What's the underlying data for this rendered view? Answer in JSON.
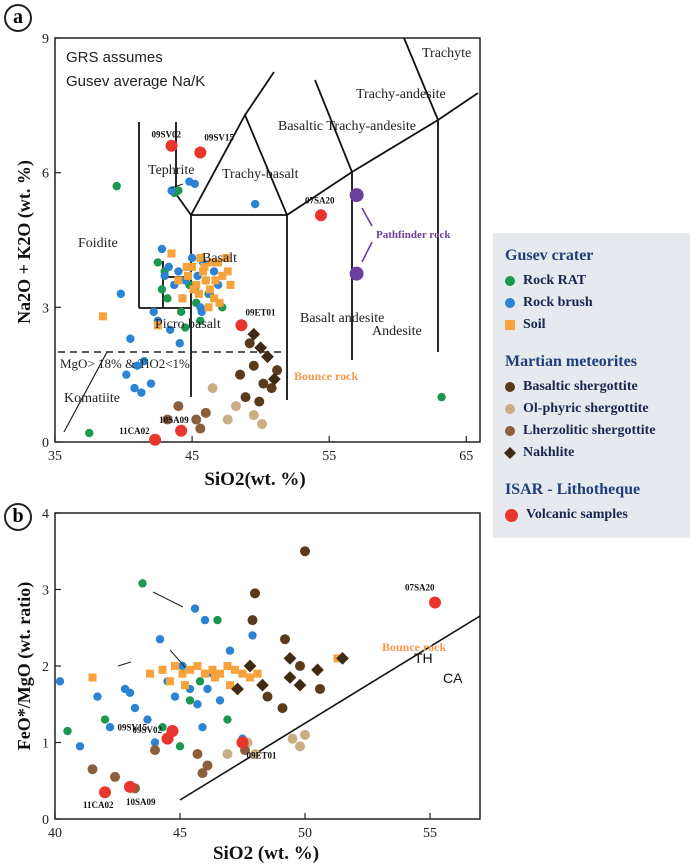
{
  "colors": {
    "rock_rat": "#1a9850",
    "rock_brush": "#2b83d4",
    "soil": "#f5a33a",
    "basaltic_shergottite": "#5a3a1a",
    "olphyric_shergottite": "#c9ae85",
    "lherzolitic_shergottite": "#8b5e3c",
    "nakhlite": "#3f2a14",
    "volcanic": "#e8362d",
    "pathfinder": "#6b3fa0",
    "bounce": "#f59a4c"
  },
  "legend": {
    "gusev_title": "Gusev crater",
    "rock_rat": "Rock RAT",
    "rock_brush": "Rock brush",
    "soil": "Soil",
    "martian_title": "Martian meteorites",
    "basaltic_shergottite": "Basaltic shergottite",
    "olphyric_shergottite": "Ol-phyric shergottite",
    "lherzolitic_shergottite": "Lherzolitic shergottite",
    "nakhlite": "Nakhlite",
    "isar_title": "ISAR - Lithotheque",
    "volcanic": "Volcanic samples"
  },
  "chart_data": [
    {
      "type": "scatter",
      "panel_label": "a",
      "note": [
        "GRS assumes",
        "Gusev average Na/K"
      ],
      "xlabel": "SiO2(wt. %)",
      "ylabel": "Na2O + K2O (wt. %)",
      "xlim": [
        35,
        66
      ],
      "ylim": [
        0,
        9
      ],
      "x_ticks": [
        35,
        45,
        55,
        65
      ],
      "y_ticks": [
        0,
        3,
        6,
        9
      ],
      "fields": [
        "Foidite",
        "Tephrite",
        "Trachy-basalt",
        "Basaltic Trachy-andesite",
        "Trachy-andesite",
        "Trachyte",
        "Basalt",
        "Basalt andesite",
        "Andesite",
        "Picro basalt",
        "MgO> 18% & TiO2<1%",
        "Komatiite"
      ],
      "annotations": {
        "pathfinder": "Pathfinder rock",
        "bounce": "Bounce rock"
      },
      "series": [
        {
          "name": "Rock RAT",
          "x": [
            37.5,
            39.5,
            42.5,
            42.8,
            43.0,
            43.2,
            43.7,
            44.0,
            44.2,
            44.5,
            44.8,
            45.3,
            45.6,
            46.2,
            47.2,
            63.2
          ],
          "y": [
            0.2,
            5.7,
            4.0,
            3.4,
            3.8,
            3.2,
            5.55,
            5.6,
            2.9,
            2.55,
            3.5,
            3.1,
            2.7,
            3.3,
            3.0,
            1.0
          ]
        },
        {
          "name": "Rock brush",
          "x": [
            39.8,
            40.5,
            41.5,
            42.0,
            42.5,
            43.0,
            43.3,
            43.7,
            44.0,
            44.3,
            44.5,
            44.8,
            45.0,
            45.2,
            45.4,
            45.6,
            45.8,
            46.0,
            46.3,
            46.6,
            43.5,
            44.8,
            45.2,
            49.6,
            41.0,
            42.2,
            40.2,
            40.8,
            41.3,
            44.1,
            43.4,
            42.8,
            46.9,
            45.7
          ],
          "y": [
            3.3,
            2.3,
            1.8,
            1.3,
            2.7,
            3.7,
            3.9,
            3.5,
            3.8,
            3.2,
            3.6,
            3.9,
            4.1,
            3.4,
            3.7,
            3.0,
            4.0,
            3.6,
            3.3,
            3.8,
            5.6,
            5.8,
            5.75,
            5.3,
            1.7,
            2.9,
            1.5,
            1.2,
            1.1,
            2.2,
            2.5,
            4.3,
            3.5,
            2.9
          ]
        },
        {
          "name": "Soil",
          "x": [
            38.5,
            42.5,
            43.5,
            44.0,
            44.3,
            44.7,
            45.0,
            45.3,
            45.5,
            45.8,
            46.0,
            46.3,
            46.6,
            46.9,
            47.2,
            47.5,
            47.8,
            46.2,
            45.9,
            45.1,
            46.7,
            47.6,
            44.6,
            45.6,
            46.4,
            47.0
          ],
          "y": [
            2.8,
            2.6,
            4.2,
            3.6,
            3.2,
            3.7,
            3.9,
            3.5,
            3.3,
            3.8,
            3.6,
            3.4,
            3.2,
            4.0,
            3.7,
            4.1,
            3.5,
            3.0,
            3.9,
            3.4,
            3.6,
            3.8,
            3.9,
            4.1,
            4.0,
            3.1
          ]
        }
      ]
    },
    {
      "type": "scatter",
      "panel_label": "b",
      "xlabel": "SiO2 (wt. %)",
      "ylabel": "FeO*/MgO (wt. ratio)",
      "xlim": [
        40,
        57
      ],
      "ylim": [
        0,
        4
      ],
      "x_ticks": [
        40,
        45,
        50,
        55
      ],
      "y_ticks": [
        0,
        1,
        2,
        3,
        4
      ],
      "line_labels": [
        "TH",
        "CA"
      ],
      "annotations": {
        "bounce": "Bounce rock"
      },
      "series": [
        {
          "name": "Rock RAT",
          "x": [
            40.5,
            42.0,
            43.5,
            44.3,
            45.0,
            45.4,
            45.8,
            46.5,
            46.9
          ],
          "y": [
            1.15,
            1.3,
            3.08,
            1.2,
            0.95,
            1.55,
            1.8,
            2.6,
            1.3
          ]
        },
        {
          "name": "Rock brush",
          "x": [
            40.2,
            41.0,
            41.7,
            42.2,
            42.8,
            43.2,
            43.7,
            44.2,
            44.5,
            44.8,
            45.1,
            45.4,
            45.7,
            46.0,
            46.3,
            46.6,
            47.0,
            47.5,
            44.0,
            45.6,
            46.1,
            47.9,
            43.0,
            45.9
          ],
          "y": [
            1.8,
            0.95,
            1.6,
            1.2,
            1.7,
            1.45,
            1.3,
            2.35,
            1.8,
            1.6,
            2.0,
            1.7,
            1.5,
            2.6,
            1.9,
            1.55,
            2.2,
            1.05,
            1.0,
            2.75,
            1.7,
            2.4,
            1.65,
            1.2
          ]
        },
        {
          "name": "Soil",
          "x": [
            41.5,
            43.8,
            44.3,
            44.8,
            45.1,
            45.4,
            45.7,
            46.0,
            46.3,
            46.6,
            46.9,
            47.2,
            47.5,
            47.8,
            48.1,
            51.3,
            45.2,
            46.4,
            47.0,
            44.6
          ],
          "y": [
            1.85,
            1.9,
            1.95,
            2.0,
            1.9,
            1.95,
            2.0,
            1.9,
            1.95,
            1.9,
            2.0,
            1.95,
            1.9,
            1.85,
            1.9,
            2.1,
            1.75,
            1.85,
            1.75,
            1.8
          ]
        }
      ]
    }
  ]
}
